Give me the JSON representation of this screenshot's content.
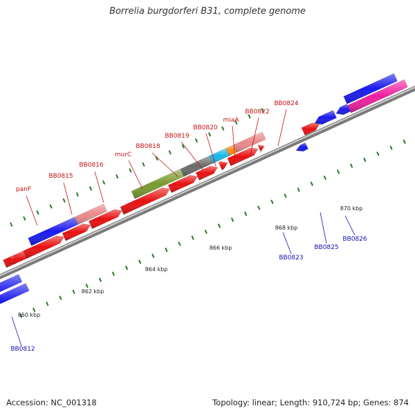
{
  "title": "Borrelia burgdorferi B31, complete genome",
  "footer": {
    "accession": "Accession: NC_001318",
    "summary": "Topology: linear; Length: 910,724 bp; Genes: 874"
  },
  "colors": {
    "forward_gene": "#e81010",
    "reverse_gene": "#1a1aee",
    "forward_label": "#c41010",
    "reverse_label": "#1010b0",
    "tick": "#227722",
    "backbone": "#8a8a8a"
  },
  "scale_labels": [
    {
      "kbp": 860,
      "text": "860 kbp"
    },
    {
      "kbp": 862,
      "text": "862 kbp"
    },
    {
      "kbp": 864,
      "text": "864 kbp"
    },
    {
      "kbp": 866,
      "text": "866 kbp"
    },
    {
      "kbp": 868,
      "text": "868 kbp"
    },
    {
      "kbp": 870,
      "text": "870 kbp"
    }
  ],
  "gene_labels": [
    {
      "text": "panF",
      "strand": "forward"
    },
    {
      "text": "BB0815",
      "strand": "forward"
    },
    {
      "text": "BB0816",
      "strand": "forward"
    },
    {
      "text": "murC",
      "strand": "forward"
    },
    {
      "text": "BB0818",
      "strand": "forward"
    },
    {
      "text": "BB0819",
      "strand": "forward"
    },
    {
      "text": "BB0820",
      "strand": "forward"
    },
    {
      "text": "miaA",
      "strand": "forward"
    },
    {
      "text": "BB0822",
      "strand": "forward"
    },
    {
      "text": "BB0824",
      "strand": "forward"
    },
    {
      "text": "BB0812",
      "strand": "reverse"
    },
    {
      "text": "BB0823",
      "strand": "reverse"
    },
    {
      "text": "BB0825",
      "strand": "reverse"
    },
    {
      "text": "BB0826",
      "strand": "reverse"
    }
  ],
  "feature_colors": [
    "#7a9a2e",
    "#6a6a6a",
    "#18b8e8",
    "#ff8c1a",
    "#e88a8a",
    "#ee1e9e"
  ]
}
